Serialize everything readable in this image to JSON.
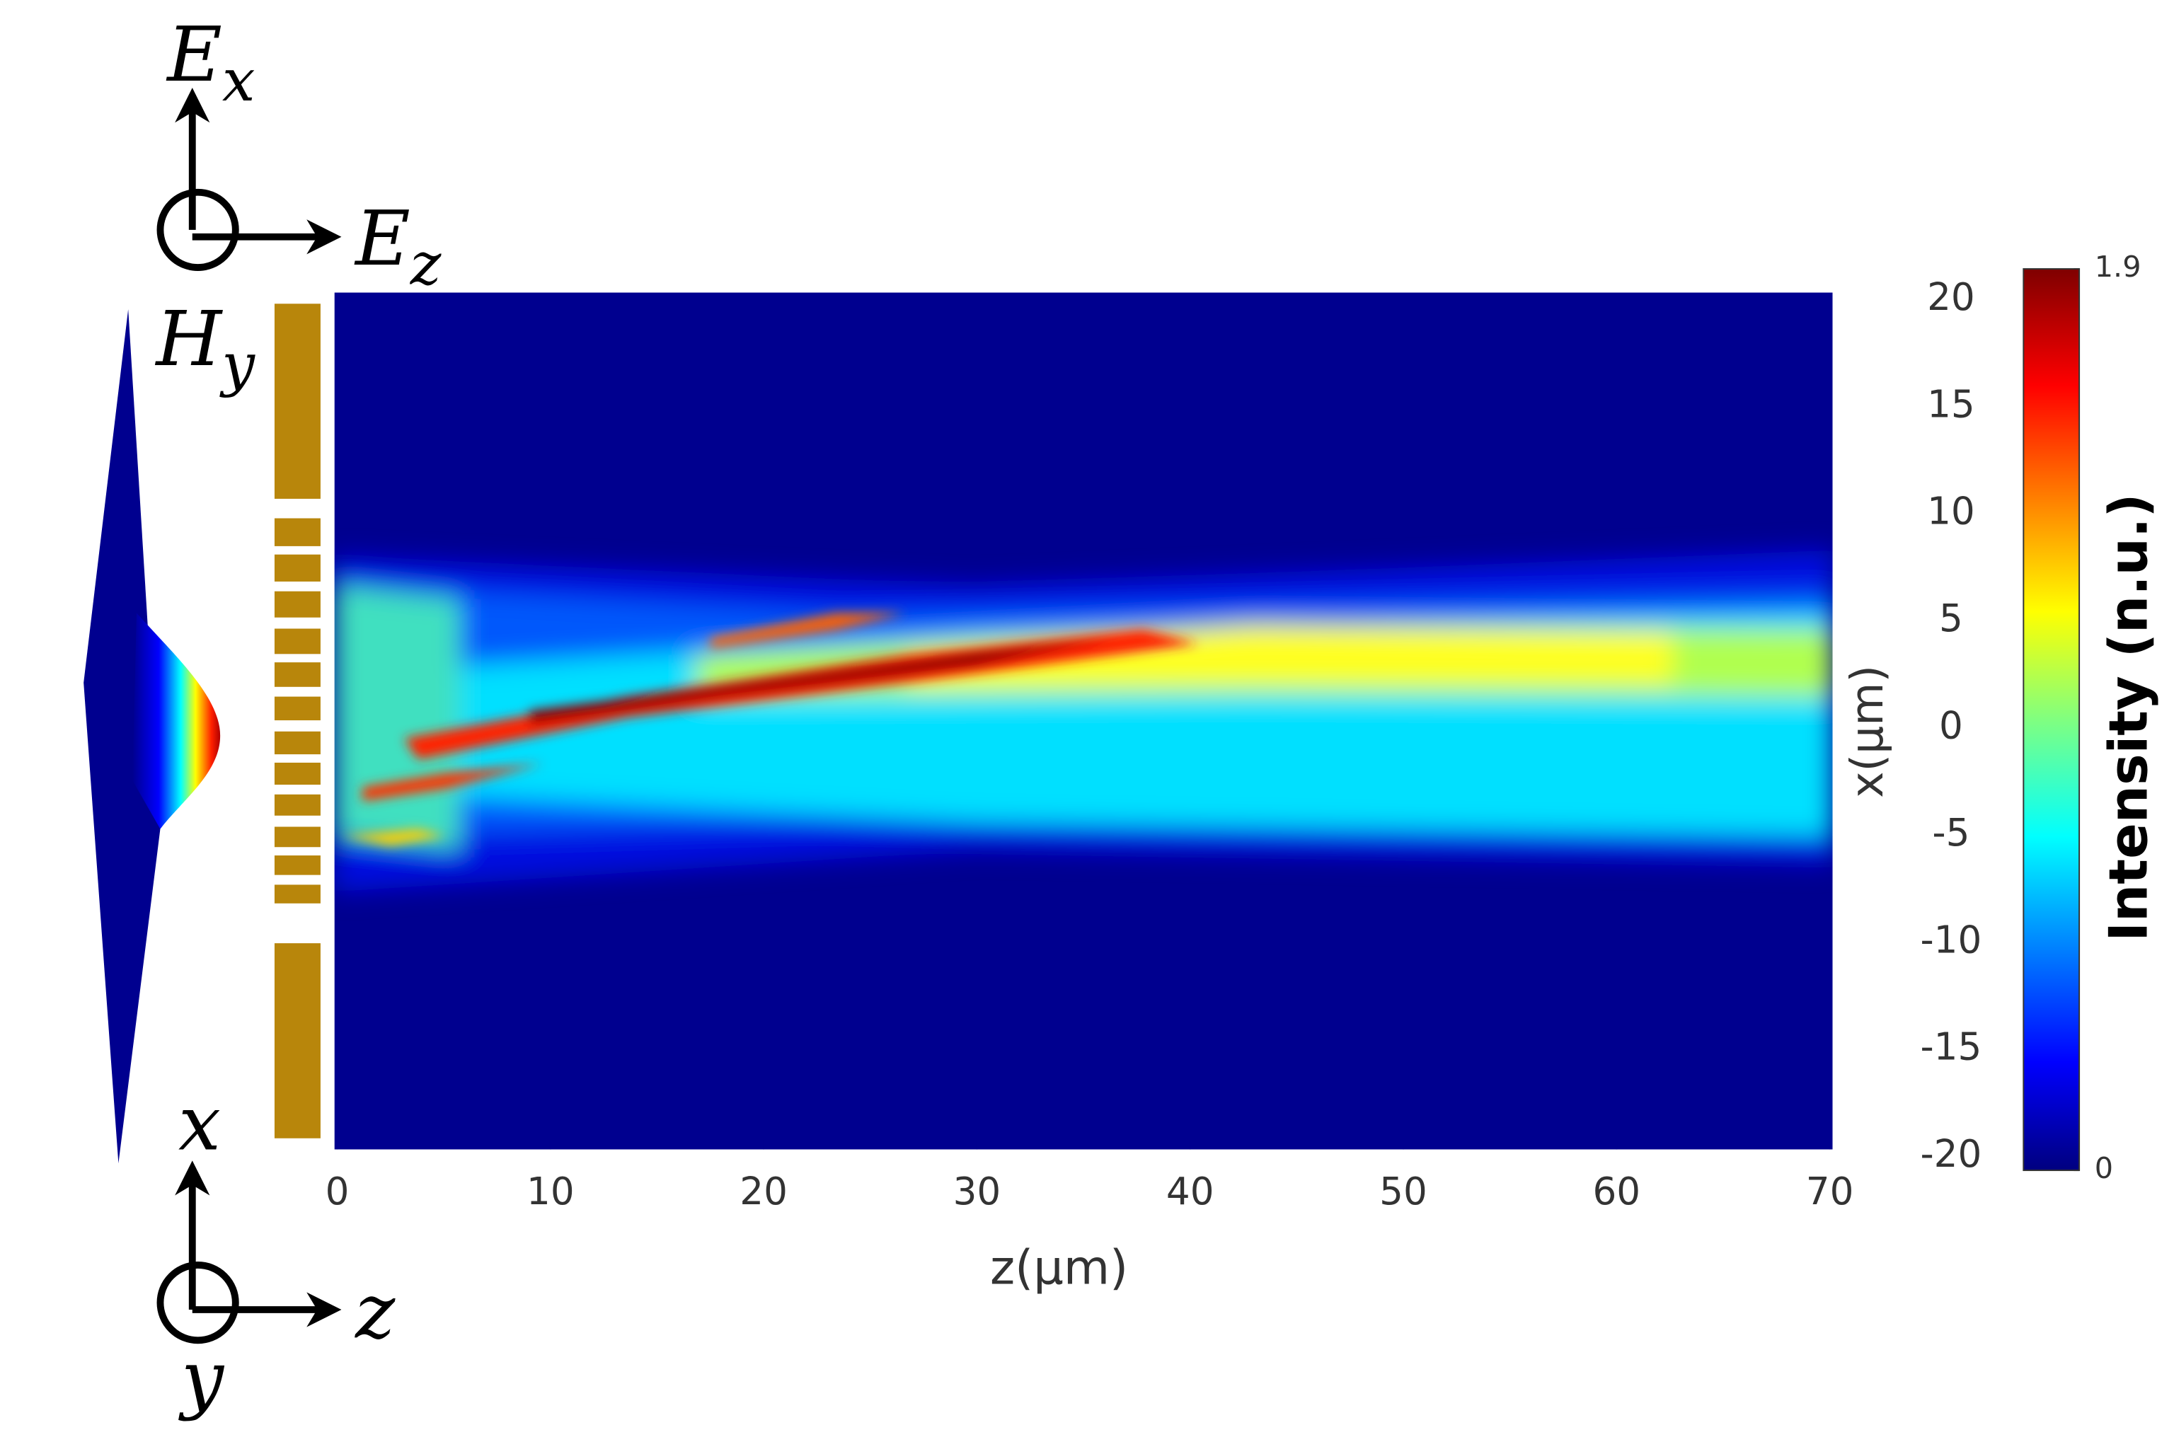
{
  "chart_data": {
    "type": "heatmap",
    "x_label": "z(μm)",
    "y_label": "x(μm)",
    "xlim": [
      0,
      70
    ],
    "xticks": [
      0,
      10,
      20,
      30,
      40,
      50,
      60,
      70
    ],
    "ylim": [
      -20,
      20
    ],
    "yticks": [
      20,
      15,
      10,
      5,
      0,
      -5,
      -10,
      -15,
      -20
    ],
    "colorbar": {
      "label": "Intensity (n.u.)",
      "lim": [
        0,
        1.9
      ],
      "ticks": [
        1.9,
        0
      ],
      "colormap": "jet"
    },
    "annotations": [
      {
        "main": "E",
        "sub": "x"
      },
      {
        "main": "E",
        "sub": "z"
      },
      {
        "main": "H",
        "sub": "y"
      },
      {
        "main": "x"
      },
      {
        "main": "z"
      },
      {
        "main": "y"
      }
    ]
  }
}
